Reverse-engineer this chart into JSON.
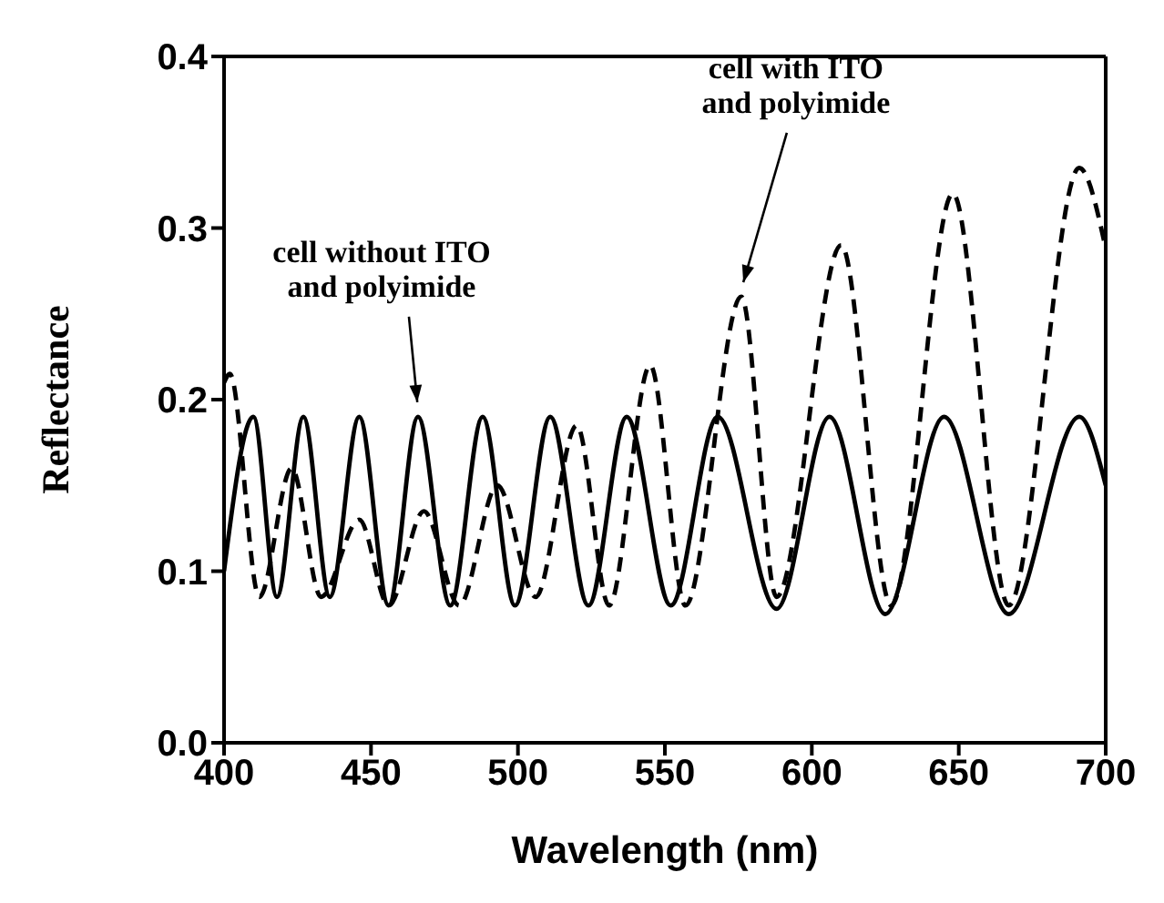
{
  "chart_data": {
    "type": "line",
    "xlabel": "Wavelength (nm)",
    "ylabel": "Reflectance",
    "xlim": [
      400,
      700
    ],
    "xticks": [
      400,
      450,
      500,
      550,
      600,
      650,
      700
    ],
    "ylim": [
      0,
      0.4
    ],
    "yticks": [
      {
        "value": 0,
        "label": "0.0"
      },
      0.1,
      0.2,
      0.3,
      0.4
    ],
    "marker": "none",
    "series": [
      {
        "color": "#000000",
        "line_style": "solid",
        "x": [
          400,
          410,
          418,
          427,
          436,
          446,
          456,
          466,
          477,
          488,
          499,
          511,
          524,
          537,
          552,
          568,
          588,
          606,
          625,
          645,
          667,
          691,
          700
        ],
        "values": [
          0.1,
          0.19,
          0.085,
          0.19,
          0.085,
          0.19,
          0.08,
          0.19,
          0.08,
          0.19,
          0.08,
          0.19,
          0.08,
          0.19,
          0.08,
          0.19,
          0.078,
          0.19,
          0.075,
          0.19,
          0.075,
          0.19,
          0.15
        ]
      },
      {
        "color": "#000000",
        "line_style": "dashed",
        "x": [
          400,
          402,
          412,
          423,
          433,
          446,
          456,
          468,
          480,
          493,
          506,
          520,
          531,
          545,
          557,
          576,
          588,
          610,
          627,
          648,
          667,
          691,
          700
        ],
        "values": [
          0.21,
          0.215,
          0.085,
          0.16,
          0.085,
          0.13,
          0.08,
          0.135,
          0.08,
          0.15,
          0.085,
          0.185,
          0.08,
          0.22,
          0.08,
          0.26,
          0.085,
          0.29,
          0.08,
          0.32,
          0.08,
          0.335,
          0.288
        ]
      }
    ],
    "annotations": [
      {
        "text": "cell without ITO\nand polyimide",
        "x": 466,
        "y": 0.19
      },
      {
        "text": "cell with ITO\nand polyimide",
        "x": 576,
        "y": 0.26
      }
    ]
  }
}
